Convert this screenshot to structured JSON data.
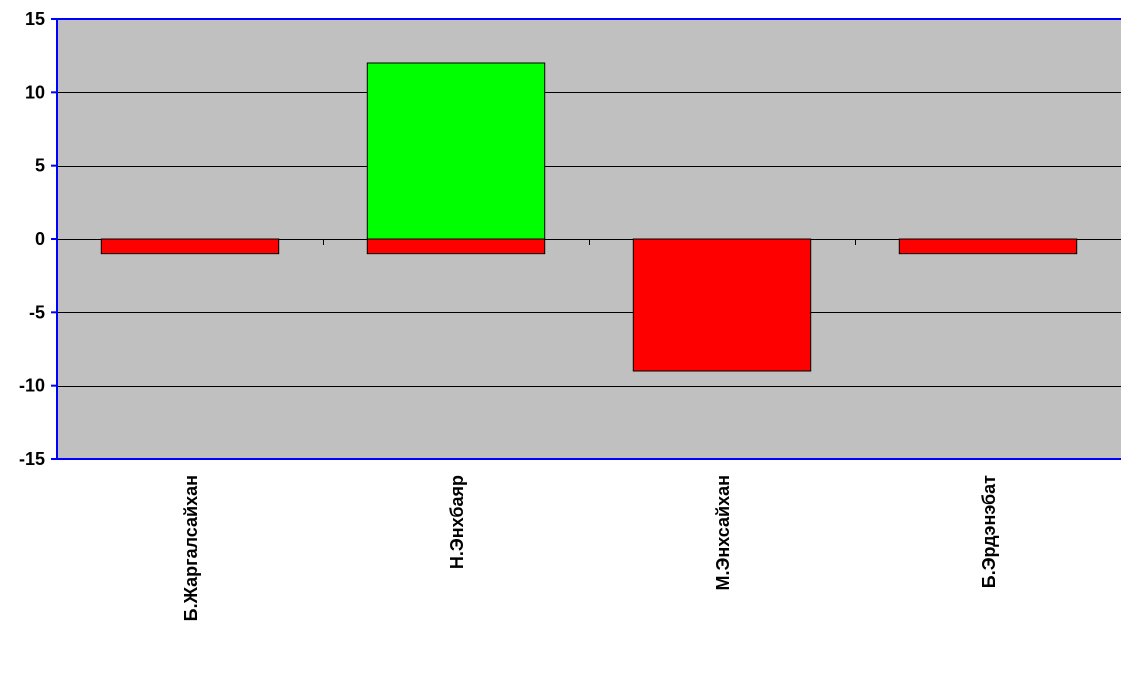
{
  "chart_data": {
    "type": "bar",
    "title": "",
    "xlabel": "",
    "ylabel": "",
    "ylim": [
      -15,
      15
    ],
    "yticks": [
      15,
      10,
      5,
      0,
      -5,
      -10,
      -15
    ],
    "grid": true,
    "legend": "none",
    "categories": [
      "Б.Жаргалсайхан",
      "Н.Энхбаяр",
      "М.Энхсайхан",
      "Б.Эрдэнэбат"
    ],
    "series": [
      {
        "values": [
          0,
          12,
          0,
          0
        ],
        "color": "#00ff00"
      },
      {
        "values": [
          -1,
          -1,
          -9,
          -1
        ],
        "color": "#ff0000"
      }
    ],
    "colors": {
      "plot_background": "#c0c0c0",
      "axis": "#0000ff",
      "gridline": "#000000",
      "bar_outline": "#000000"
    }
  }
}
